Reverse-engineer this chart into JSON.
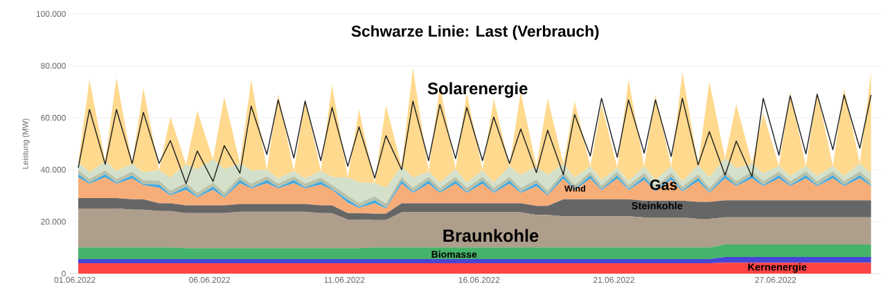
{
  "chart_data": {
    "type": "area",
    "stacked": true,
    "title": "Schwarze Linie: Last (Verbrauch)",
    "ylabel": "Leistung (MW)",
    "x": [
      "2022-06-01T03:00",
      "2022-06-01T13:00",
      "2022-06-02T03:00",
      "2022-06-02T13:00",
      "2022-06-03T03:00",
      "2022-06-03T13:00",
      "2022-06-04T03:00",
      "2022-06-04T13:00",
      "2022-06-05T03:00",
      "2022-06-05T13:00",
      "2022-06-06T03:00",
      "2022-06-06T13:00",
      "2022-06-07T03:00",
      "2022-06-07T13:00",
      "2022-06-08T03:00",
      "2022-06-08T13:00",
      "2022-06-09T03:00",
      "2022-06-09T13:00",
      "2022-06-10T03:00",
      "2022-06-10T13:00",
      "2022-06-11T03:00",
      "2022-06-11T13:00",
      "2022-06-12T03:00",
      "2022-06-12T13:00",
      "2022-06-13T03:00",
      "2022-06-13T13:00",
      "2022-06-14T03:00",
      "2022-06-14T13:00",
      "2022-06-15T03:00",
      "2022-06-15T13:00",
      "2022-06-16T03:00",
      "2022-06-16T13:00",
      "2022-06-17T03:00",
      "2022-06-17T13:00",
      "2022-06-18T03:00",
      "2022-06-18T13:00",
      "2022-06-19T03:00",
      "2022-06-19T13:00",
      "2022-06-20T03:00",
      "2022-06-20T13:00",
      "2022-06-21T03:00",
      "2022-06-21T13:00",
      "2022-06-22T03:00",
      "2022-06-22T13:00",
      "2022-06-23T03:00",
      "2022-06-23T13:00",
      "2022-06-24T03:00",
      "2022-06-24T13:00",
      "2022-06-25T03:00",
      "2022-06-25T13:00",
      "2022-06-26T03:00",
      "2022-06-26T13:00",
      "2022-06-27T03:00",
      "2022-06-27T13:00",
      "2022-06-28T03:00",
      "2022-06-28T13:00",
      "2022-06-29T03:00",
      "2022-06-29T13:00",
      "2022-06-30T03:00",
      "2022-06-30T13:00"
    ],
    "xlim": [
      "2022-05-31T19:00",
      "2022-06-30T22:00"
    ],
    "xticks": [
      {
        "value": "2022-06-01",
        "label": "01.06.2022"
      },
      {
        "value": "2022-06-06",
        "label": "06.06.2022"
      },
      {
        "value": "2022-06-11",
        "label": "11.06.2022"
      },
      {
        "value": "2022-06-16",
        "label": "16.06.2022"
      },
      {
        "value": "2022-06-21",
        "label": "21.06.2022"
      },
      {
        "value": "2022-06-27",
        "label": "27.06.2022"
      }
    ],
    "ylim": [
      0,
      100000
    ],
    "yticks": [
      {
        "value": 0,
        "label": "0"
      },
      {
        "value": 20000,
        "label": "20.000"
      },
      {
        "value": 40000,
        "label": "40.000"
      },
      {
        "value": 60000,
        "label": "60.000"
      },
      {
        "value": 80000,
        "label": "80.000"
      },
      {
        "value": 100000,
        "label": "100.000"
      }
    ],
    "grid": "y",
    "series": [
      {
        "name": "Kernenergie",
        "color": "#ff4444",
        "values": [
          4000,
          4000,
          4000,
          4000,
          4000,
          4000,
          4000,
          4000,
          4000,
          4000,
          4000,
          4000,
          4000,
          4000,
          4000,
          4000,
          4000,
          4000,
          4000,
          4000,
          4000,
          4000,
          4000,
          4000,
          4000,
          4000,
          4000,
          4000,
          4000,
          4000,
          4000,
          4000,
          4000,
          4000,
          4000,
          4000,
          4000,
          4000,
          4000,
          4000,
          4000,
          4000,
          4000,
          4000,
          4000,
          4000,
          4000,
          4000,
          4200,
          4200,
          4200,
          4200,
          4200,
          4200,
          4200,
          4200,
          4200,
          4200,
          4200,
          4200
        ]
      },
      {
        "color": "#4646d6",
        "values": [
          1600,
          1600,
          1600,
          1600,
          1600,
          1600,
          1600,
          1600,
          1600,
          1600,
          1600,
          1600,
          1600,
          1600,
          1600,
          1600,
          1600,
          1600,
          1600,
          1600,
          1600,
          1600,
          1600,
          1600,
          1600,
          1600,
          1600,
          1600,
          1600,
          1600,
          1600,
          1600,
          1600,
          1600,
          1600,
          1600,
          1600,
          1600,
          1600,
          1600,
          1600,
          1600,
          1600,
          1600,
          1600,
          1600,
          1600,
          1600,
          2200,
          2200,
          2200,
          2200,
          2200,
          2200,
          2200,
          2200,
          2200,
          2200,
          2200,
          2200
        ]
      },
      {
        "name": "Biomasse",
        "color": "#46b36a",
        "values": [
          4500,
          4500,
          4500,
          4500,
          4500,
          4500,
          4500,
          4500,
          4200,
          4200,
          4200,
          4200,
          4200,
          4200,
          4200,
          4200,
          4200,
          4200,
          4200,
          4200,
          4200,
          4200,
          4500,
          4500,
          4500,
          4500,
          4500,
          4500,
          4500,
          4500,
          4500,
          4500,
          4500,
          4500,
          4500,
          4500,
          4500,
          4500,
          4500,
          4500,
          4500,
          4500,
          4500,
          4500,
          4500,
          4500,
          4500,
          4500,
          4800,
          4800,
          4800,
          4800,
          4800,
          4800,
          4800,
          4800,
          4800,
          4800,
          4800,
          4800
        ]
      },
      {
        "name": "Braunkohle",
        "color": "#ae9e8c",
        "values": [
          15000,
          15000,
          15000,
          15000,
          14500,
          14500,
          14000,
          14000,
          13500,
          13500,
          13500,
          13500,
          14000,
          14000,
          14000,
          14000,
          14000,
          14000,
          13500,
          13500,
          11000,
          11000,
          10500,
          10500,
          13500,
          13500,
          13500,
          13500,
          13500,
          13500,
          13500,
          13500,
          13500,
          13500,
          12500,
          12500,
          12000,
          12000,
          12000,
          12000,
          12000,
          12000,
          11500,
          11500,
          11500,
          11500,
          11000,
          11000,
          10500,
          10500,
          10500,
          10500,
          10500,
          10500,
          10500,
          10500,
          10500,
          10500,
          10500,
          10500
        ]
      },
      {
        "name": "Steinkohle",
        "color": "#666666",
        "values": [
          4000,
          4000,
          4000,
          4000,
          4000,
          4000,
          3000,
          3000,
          3000,
          3000,
          3000,
          3000,
          3000,
          3000,
          3000,
          3000,
          3000,
          3000,
          3000,
          3000,
          2500,
          2500,
          2500,
          2500,
          3500,
          3500,
          3500,
          3500,
          3500,
          3500,
          3500,
          3500,
          3500,
          3500,
          3500,
          3500,
          6500,
          6500,
          6500,
          6500,
          6500,
          6500,
          6500,
          6500,
          6500,
          6500,
          6500,
          6500,
          6500,
          6500,
          6500,
          6500,
          6500,
          6500,
          6500,
          6500,
          6500,
          6500,
          6500,
          6500
        ]
      },
      {
        "name": "Gas",
        "color": "#f7ad78",
        "values": [
          8000,
          5500,
          8000,
          5500,
          8000,
          5500,
          6000,
          3000,
          6000,
          3000,
          6000,
          3000,
          8000,
          6000,
          8000,
          6000,
          8000,
          6000,
          8000,
          6000,
          4000,
          2000,
          4000,
          2000,
          7500,
          4000,
          7500,
          4000,
          7500,
          4000,
          7500,
          4000,
          7500,
          4000,
          7500,
          4000,
          8000,
          3500,
          8000,
          3500,
          8000,
          3500,
          8000,
          3500,
          8000,
          3500,
          8000,
          3500,
          8500,
          5500,
          8500,
          5500,
          8500,
          5500,
          8500,
          5500,
          8500,
          5500,
          8500,
          5500
        ]
      },
      {
        "color": "#40a8e0",
        "values": [
          1200,
          400,
          1200,
          400,
          1200,
          400,
          1200,
          400,
          1200,
          400,
          1200,
          400,
          1200,
          400,
          1200,
          400,
          1200,
          400,
          1200,
          400,
          1200,
          400,
          1200,
          400,
          1200,
          400,
          1200,
          400,
          1200,
          400,
          1200,
          400,
          1200,
          400,
          1200,
          400,
          1200,
          400,
          1200,
          400,
          1200,
          400,
          1200,
          400,
          1200,
          400,
          1200,
          400,
          1200,
          400,
          1200,
          400,
          1200,
          400,
          1200,
          400,
          1200,
          400,
          1200,
          400
        ]
      },
      {
        "color": "#b8c2aa",
        "values": [
          1500,
          1500,
          1500,
          1500,
          1500,
          1500,
          1500,
          1500,
          1500,
          1500,
          1500,
          1500,
          1500,
          1500,
          1500,
          1500,
          1500,
          1500,
          1500,
          1500,
          1500,
          1500,
          1500,
          1500,
          1500,
          1500,
          1500,
          1500,
          1500,
          1500,
          1500,
          1500,
          1500,
          1500,
          1500,
          1500,
          1500,
          1500,
          1500,
          1500,
          1500,
          1500,
          1500,
          1500,
          1500,
          1500,
          1500,
          1500,
          1500,
          1500,
          1500,
          1500,
          1500,
          1500,
          1500,
          1500,
          1500,
          1500,
          1500,
          1500
        ]
      },
      {
        "name": "Wind",
        "color": "#d4e0c9",
        "values": [
          3000,
          2500,
          3500,
          3000,
          3000,
          3000,
          4000,
          5000,
          7000,
          9000,
          9000,
          9000,
          5000,
          5000,
          2500,
          2000,
          2000,
          2000,
          2500,
          3000,
          7000,
          8000,
          5000,
          6000,
          4000,
          4000,
          2000,
          2000,
          3000,
          2000,
          2500,
          2000,
          4000,
          5000,
          5000,
          6000,
          3000,
          3000,
          2000,
          2000,
          1500,
          1500,
          2500,
          2500,
          2500,
          2000,
          3500,
          4000,
          5000,
          5000,
          3000,
          3000,
          2000,
          2000,
          2000,
          2000,
          2000,
          2000,
          3000,
          3000
        ]
      },
      {
        "name": "Solarenergie",
        "color": "#ffd98e",
        "values": [
          0,
          35700,
          0,
          36000,
          0,
          32500,
          0,
          23500,
          0,
          22500,
          0,
          27800,
          0,
          35000,
          0,
          32600,
          0,
          30500,
          0,
          35600,
          0,
          28000,
          0,
          31800,
          0,
          42200,
          0,
          37500,
          0,
          34600,
          0,
          32500,
          0,
          31900,
          0,
          29500,
          0,
          29400,
          0,
          29300,
          0,
          39200,
          0,
          32800,
          0,
          42100,
          0,
          36900,
          0,
          24700,
          0,
          23300,
          0,
          32300,
          0,
          32500,
          0,
          33900,
          0,
          39000
        ]
      },
      {
        "type": "line",
        "color": "#222222",
        "values": [
          40800,
          63200,
          42100,
          63200,
          42400,
          62100,
          42400,
          51200,
          34700,
          47200,
          35500,
          49300,
          38700,
          64500,
          45900,
          66900,
          44500,
          66400,
          43500,
          64000,
          41300,
          56500,
          36800,
          53100,
          40000,
          66400,
          43500,
          65100,
          44300,
          64000,
          43500,
          60300,
          42400,
          55700,
          38900,
          55200,
          38100,
          61300,
          45300,
          67500,
          44800,
          66900,
          46400,
          66900,
          45100,
          67500,
          41900,
          54700,
          37900,
          51000,
          37300,
          67500,
          45600,
          68500,
          46100,
          69100,
          47700,
          68800,
          48300,
          68800
        ]
      }
    ]
  }
}
